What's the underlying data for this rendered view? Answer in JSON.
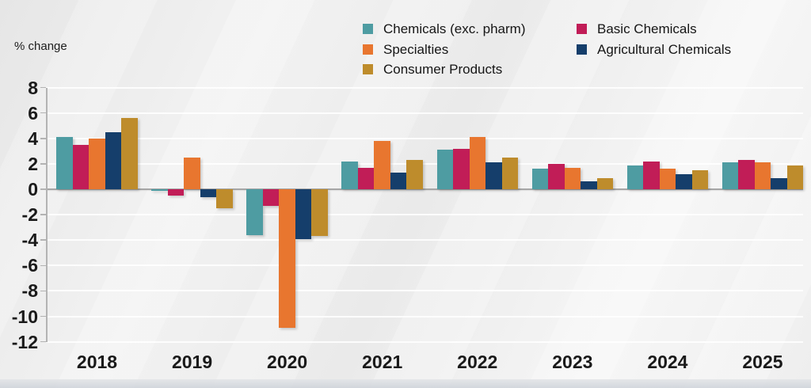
{
  "chart_data": {
    "type": "bar",
    "title": "",
    "xlabel": "",
    "ylabel": "% change",
    "categories": [
      "2018",
      "2019",
      "2020",
      "2021",
      "2022",
      "2023",
      "2024",
      "2025"
    ],
    "series": [
      {
        "name": "Chemicals (exc. pharm)",
        "color": "#4E9CA2",
        "values": [
          4.1,
          -0.1,
          -3.6,
          2.2,
          3.1,
          1.6,
          1.9,
          2.1
        ]
      },
      {
        "name": "Basic Chemicals",
        "color": "#C11D57",
        "values": [
          3.5,
          -0.5,
          -1.3,
          1.7,
          3.2,
          2.0,
          2.2,
          2.3
        ]
      },
      {
        "name": "Specialties",
        "color": "#E8762F",
        "values": [
          4.0,
          2.5,
          -10.9,
          3.8,
          4.1,
          1.7,
          1.6,
          2.1
        ]
      },
      {
        "name": "Agricultural Chemicals",
        "color": "#153E6B",
        "values": [
          4.5,
          -0.6,
          -3.9,
          1.3,
          2.1,
          0.6,
          1.2,
          0.9
        ]
      },
      {
        "name": "Consumer Products",
        "color": "#BE8C2C",
        "values": [
          5.6,
          -1.5,
          -3.7,
          2.3,
          2.5,
          0.9,
          1.5,
          1.9
        ]
      }
    ],
    "y_ticks": [
      8,
      6,
      4,
      2,
      0,
      -2,
      -4,
      -6,
      -8,
      -10,
      -12
    ],
    "ylim": [
      -12,
      8
    ],
    "grid": true,
    "legend_position": "top-right"
  },
  "legend": {
    "rows": [
      [
        0,
        1
      ],
      [
        2,
        3
      ],
      [
        4
      ]
    ]
  }
}
